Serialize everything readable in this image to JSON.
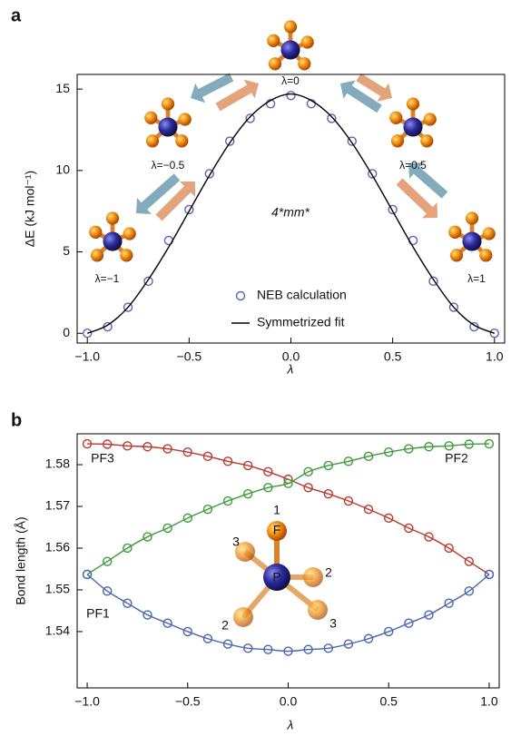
{
  "chart_data": [
    {
      "type": "line",
      "panel": "a",
      "xlabel": "λ",
      "ylabel": "ΔE (kJ mol⁻¹)",
      "xlim": [
        -1.05,
        1.05
      ],
      "ylim": [
        -0.6,
        15.9
      ],
      "xticks": [
        {
          "value": -1,
          "label": "−1.0"
        },
        {
          "value": -0.5,
          "label": "−0.5"
        },
        {
          "value": 0,
          "label": "0.0"
        },
        {
          "value": 0.5,
          "label": "0.5"
        },
        {
          "value": 1,
          "label": "1.0"
        }
      ],
      "yticks": [
        0,
        5,
        10,
        15
      ],
      "x": [
        -1,
        -0.9,
        -0.8,
        -0.7,
        -0.6,
        -0.5,
        -0.4,
        -0.3,
        -0.2,
        -0.1,
        0,
        0.1,
        0.2,
        0.3,
        0.4,
        0.5,
        0.6,
        0.7,
        0.8,
        0.9,
        1
      ],
      "series": [
        {
          "name": "NEB calculation",
          "color": "#5a64b0",
          "style": "markers",
          "values": [
            0,
            0.4,
            1.6,
            3.2,
            5.7,
            7.6,
            9.8,
            11.8,
            13.2,
            14.1,
            14.6,
            14.1,
            13.2,
            11.8,
            9.8,
            7.6,
            5.7,
            3.2,
            1.6,
            0.4,
            0
          ]
        },
        {
          "name": "Symmetrized fit",
          "color": "#000000",
          "style": "line",
          "values": [
            0,
            0.5,
            1.6,
            3.3,
            5.3,
            7.5,
            9.7,
            11.7,
            13.3,
            14.3,
            14.7,
            14.3,
            13.3,
            11.7,
            9.7,
            7.5,
            5.3,
            3.3,
            1.6,
            0.5,
            0
          ]
        }
      ],
      "annotations": [
        "λ=0",
        "λ=−0.5",
        "λ=0.5",
        "λ=−1",
        "λ=1",
        "4*mm*"
      ]
    },
    {
      "type": "line",
      "panel": "b",
      "xlabel": "λ",
      "ylabel": "Bond length (Å)",
      "xlim": [
        -1.05,
        1.05
      ],
      "ylim": [
        1.5265,
        1.5874
      ],
      "xticks": [
        {
          "value": -1,
          "label": "−1.0"
        },
        {
          "value": -0.5,
          "label": "−0.5"
        },
        {
          "value": 0,
          "label": "0.0"
        },
        {
          "value": 0.5,
          "label": "0.5"
        },
        {
          "value": 1,
          "label": "1.0"
        }
      ],
      "yticks": [
        1.54,
        1.55,
        1.56,
        1.57,
        1.58
      ],
      "x": [
        -1,
        -0.9,
        -0.8,
        -0.7,
        -0.6,
        -0.5,
        -0.4,
        -0.3,
        -0.2,
        -0.1,
        0,
        0.1,
        0.2,
        0.3,
        0.4,
        0.5,
        0.6,
        0.7,
        0.8,
        0.9,
        1
      ],
      "series": [
        {
          "name": "PF3",
          "color": "#b83a2e",
          "style": "markers+line",
          "values": [
            1.585,
            1.5849,
            1.5845,
            1.5843,
            1.5838,
            1.583,
            1.582,
            1.5808,
            1.5798,
            1.5783,
            1.5765,
            1.5745,
            1.573,
            1.5713,
            1.5693,
            1.5672,
            1.5648,
            1.5627,
            1.56,
            1.5568,
            1.5537
          ]
        },
        {
          "name": "PF2",
          "color": "#3f9a3a",
          "style": "markers+line",
          "values": [
            1.5537,
            1.5568,
            1.56,
            1.5627,
            1.5648,
            1.5672,
            1.5693,
            1.5713,
            1.573,
            1.5745,
            1.5755,
            1.5783,
            1.5798,
            1.5808,
            1.582,
            1.583,
            1.5838,
            1.5843,
            1.5845,
            1.5849,
            1.585
          ]
        },
        {
          "name": "PF1",
          "color": "#4a64b0",
          "style": "markers+line",
          "values": [
            1.5537,
            1.5497,
            1.5468,
            1.544,
            1.542,
            1.54,
            1.5383,
            1.537,
            1.536,
            1.5357,
            1.5353,
            1.5357,
            1.536,
            1.537,
            1.5383,
            1.54,
            1.542,
            1.544,
            1.5468,
            1.5497,
            1.5537
          ]
        }
      ],
      "annotations": [
        "1",
        "F",
        "P",
        "3",
        "2",
        "3",
        "2"
      ]
    }
  ]
}
